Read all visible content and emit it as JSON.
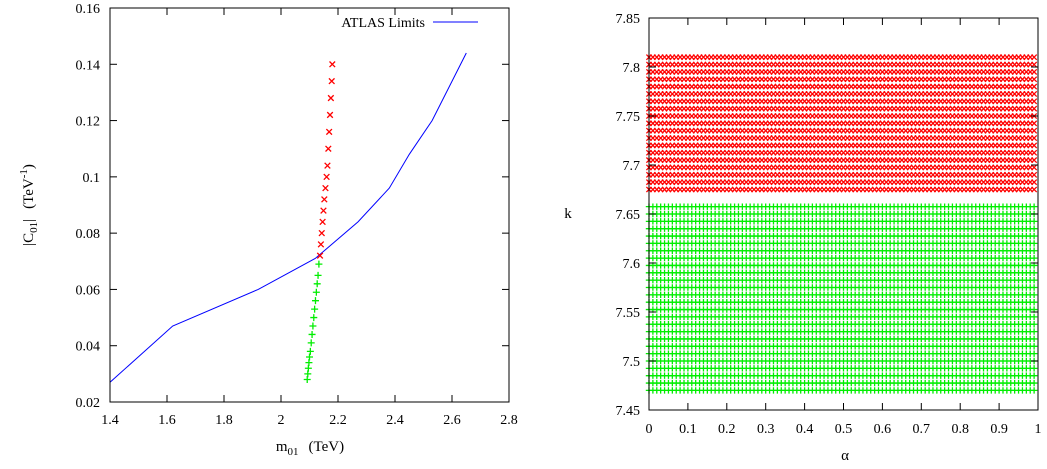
{
  "chart_data": [
    {
      "type": "line",
      "title": "",
      "xlabel": {
        "main": "m",
        "sub": "01",
        "unit": "(TeV)"
      },
      "ylabel": {
        "prefix": "|C",
        "sub": "01",
        "suffix": "|",
        "unit_main": "(TeV",
        "unit_sup": "-1",
        "unit_close": ")"
      },
      "xlim": [
        1.4,
        2.8
      ],
      "ylim": [
        0.02,
        0.16
      ],
      "xticks": [
        "1.4",
        "1.6",
        "1.8",
        "2",
        "2.2",
        "2.4",
        "2.6",
        "2.8"
      ],
      "yticks": [
        "0.02",
        "0.04",
        "0.06",
        "0.08",
        "0.1",
        "0.12",
        "0.14",
        "0.16"
      ],
      "legend_position": "top-right",
      "series": [
        {
          "name": "ATLAS Limits",
          "kind": "line",
          "color": "#0000ff",
          "x": [
            1.4,
            1.62,
            1.92,
            2.12,
            2.27,
            2.38,
            2.45,
            2.53,
            2.65
          ],
          "y": [
            0.027,
            0.047,
            0.06,
            0.071,
            0.084,
            0.096,
            0.108,
            0.12,
            0.144
          ]
        },
        {
          "kind": "x-markers",
          "color": "#ff0000",
          "x": [
            2.137,
            2.14,
            2.143,
            2.146,
            2.149,
            2.152,
            2.156,
            2.16,
            2.163,
            2.166,
            2.169,
            2.172,
            2.175,
            2.178,
            2.18
          ],
          "y": [
            0.072,
            0.076,
            0.08,
            0.084,
            0.088,
            0.092,
            0.096,
            0.1,
            0.104,
            0.11,
            0.116,
            0.122,
            0.128,
            0.134,
            0.14
          ]
        },
        {
          "kind": "plus-markers",
          "color": "#00ee00",
          "x": [
            2.092,
            2.094,
            2.096,
            2.098,
            2.1,
            2.103,
            2.106,
            2.109,
            2.112,
            2.115,
            2.118,
            2.121,
            2.124,
            2.127,
            2.13,
            2.133
          ],
          "y": [
            0.028,
            0.03,
            0.032,
            0.034,
            0.036,
            0.038,
            0.041,
            0.044,
            0.047,
            0.05,
            0.053,
            0.056,
            0.059,
            0.062,
            0.065,
            0.069
          ]
        }
      ]
    },
    {
      "type": "scatter",
      "title": "",
      "xlabel": "α",
      "ylabel": "k",
      "xlim": [
        0,
        1
      ],
      "ylim": [
        7.45,
        7.85
      ],
      "xticks": [
        "0",
        "0.1",
        "0.2",
        "0.3",
        "0.4",
        "0.5",
        "0.6",
        "0.7",
        "0.8",
        "0.9",
        "1"
      ],
      "yticks": [
        "7.45",
        "7.5",
        "7.55",
        "7.6",
        "7.65",
        "7.7",
        "7.75",
        "7.8",
        "7.85"
      ],
      "series": [
        {
          "kind": "x-markers",
          "color": "#ff0000",
          "alpha_range": [
            0,
            0.99
          ],
          "alpha_step": 0.01,
          "k_range": [
            7.675,
            7.81
          ],
          "k_step": 0.0075
        },
        {
          "kind": "plus-markers",
          "color": "#00ee00",
          "alpha_range": [
            0,
            0.99
          ],
          "alpha_step": 0.01,
          "k_range": [
            7.47,
            7.66
          ],
          "k_step": 0.0075
        }
      ]
    }
  ]
}
